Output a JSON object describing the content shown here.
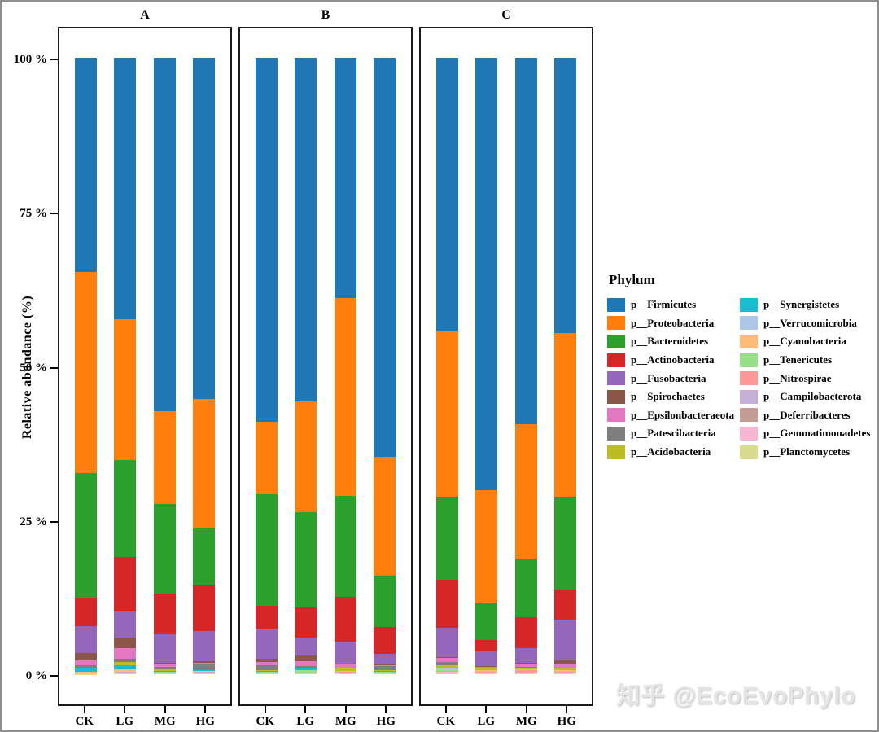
{
  "figure": {
    "watermark": "知乎 @EcoEvoPhylo"
  },
  "legend": {
    "title": "Phylum"
  },
  "chart_data": {
    "type": "bar",
    "stacked": true,
    "title": "",
    "ylabel": "Relative abundance (%)",
    "xlabel": "",
    "ylim": [
      0,
      100
    ],
    "grid": false,
    "legend_position": "right",
    "panels": [
      "A",
      "B",
      "C"
    ],
    "categories": [
      "CK",
      "LG",
      "MG",
      "HG"
    ],
    "y_ticks": [
      {
        "label": "100 %",
        "value": 100
      },
      {
        "label": "75 %",
        "value": 75
      },
      {
        "label": "50 %",
        "value": 50
      },
      {
        "label": "25 %",
        "value": 25
      },
      {
        "label": "0 %",
        "value": 0
      }
    ],
    "series": [
      {
        "name": "p__Firmicutes",
        "color": "#1f77b4"
      },
      {
        "name": "p__Proteobacteria",
        "color": "#ff7f0e"
      },
      {
        "name": "p__Bacteroidetes",
        "color": "#2ca02c"
      },
      {
        "name": "p__Actinobacteria",
        "color": "#d62728"
      },
      {
        "name": "p__Fusobacteria",
        "color": "#9467bd"
      },
      {
        "name": "p__Spirochaetes",
        "color": "#8c564b"
      },
      {
        "name": "p__Epsilonbacteraeota",
        "color": "#e377c2"
      },
      {
        "name": "p__Patescibacteria",
        "color": "#7f7f7f"
      },
      {
        "name": "p__Acidobacteria",
        "color": "#bcbd22"
      },
      {
        "name": "p__Synergistetes",
        "color": "#17becf"
      },
      {
        "name": "p__Verrucomicrobia",
        "color": "#aec7e8"
      },
      {
        "name": "p__Cyanobacteria",
        "color": "#ffbb78"
      },
      {
        "name": "p__Tenericutes",
        "color": "#98df8a"
      },
      {
        "name": "p__Nitrospirae",
        "color": "#ff9896"
      },
      {
        "name": "p__Campilobacterota",
        "color": "#c5b0d5"
      },
      {
        "name": "p__Deferribacteres",
        "color": "#c49c94"
      },
      {
        "name": "p__Gemmatimonadetes",
        "color": "#f7b6d2"
      },
      {
        "name": "p__Planctomycetes",
        "color": "#dbdb8d"
      }
    ],
    "values_pct": {
      "A": {
        "CK": [
          34.9,
          32.9,
          20.4,
          4.6,
          4.4,
          1.2,
          0.7,
          0.5,
          0.1,
          0.5,
          0.05,
          0.05,
          0.05,
          0.05,
          0.05,
          0.05,
          0.05,
          0.05
        ],
        "LG": [
          42.4,
          22.9,
          15.7,
          8.9,
          4.3,
          1.7,
          1.7,
          0.5,
          0.6,
          0.6,
          0.05,
          0.3,
          0.05,
          0.05,
          0.05,
          0.05,
          0.05,
          0.2
        ],
        "MG": [
          57.4,
          15.2,
          14.5,
          6.6,
          4.6,
          0.2,
          0.5,
          0.4,
          0.3,
          0.05,
          0.05,
          0.05,
          0.05,
          0.05,
          0.05,
          0.05,
          0.05,
          0.1
        ],
        "HG": [
          55.6,
          21.2,
          9.1,
          7.6,
          4.9,
          0.3,
          0.2,
          0.9,
          0.1,
          0.05,
          0.05,
          0.05,
          0.05,
          0.05,
          0.05,
          0.05,
          0.05,
          0.2
        ]
      },
      "B": {
        "CK": [
          59.1,
          11.8,
          18.2,
          3.6,
          5.0,
          0.5,
          0.5,
          0.8,
          0.1,
          0.1,
          0.05,
          0.05,
          0.05,
          0.05,
          0.05,
          0.05,
          0.05,
          0.1
        ],
        "LG": [
          55.8,
          18.0,
          15.6,
          4.9,
          2.9,
          0.9,
          0.8,
          0.2,
          0.1,
          0.3,
          0.05,
          0.05,
          0.3,
          0.05,
          0.05,
          0.05,
          0.05,
          0.1
        ],
        "MG": [
          39.0,
          32.2,
          16.4,
          7.2,
          3.7,
          0.1,
          0.5,
          0.1,
          0.4,
          0.05,
          0.05,
          0.05,
          0.05,
          0.05,
          0.05,
          0.05,
          0.05,
          0.15
        ],
        "HG": [
          65.0,
          19.4,
          8.4,
          4.4,
          1.7,
          0.2,
          0.1,
          0.7,
          0.1,
          0.05,
          0.05,
          0.05,
          0.05,
          0.05,
          0.05,
          0.05,
          0.05,
          0.1
        ]
      },
      "C": {
        "CK": [
          44.3,
          27.1,
          13.5,
          7.7,
          4.8,
          0.1,
          0.7,
          0.5,
          0.5,
          0.1,
          0.05,
          0.05,
          0.3,
          0.05,
          0.05,
          0.05,
          0.05,
          0.3
        ],
        "LG": [
          70.2,
          18.2,
          6.1,
          1.8,
          2.4,
          0.1,
          0.2,
          0.1,
          0.2,
          0.05,
          0.05,
          0.05,
          0.2,
          0.05,
          0.05,
          0.05,
          0.05,
          0.15
        ],
        "MG": [
          59.4,
          21.7,
          9.5,
          5.0,
          2.4,
          0.1,
          0.6,
          0.1,
          0.2,
          0.05,
          0.05,
          0.05,
          0.1,
          0.3,
          0.05,
          0.05,
          0.05,
          0.15
        ],
        "HG": [
          44.6,
          26.5,
          15.1,
          4.8,
          6.6,
          0.7,
          0.6,
          0.1,
          0.2,
          0.05,
          0.05,
          0.05,
          0.2,
          0.05,
          0.05,
          0.05,
          0.05,
          0.15
        ]
      }
    }
  }
}
